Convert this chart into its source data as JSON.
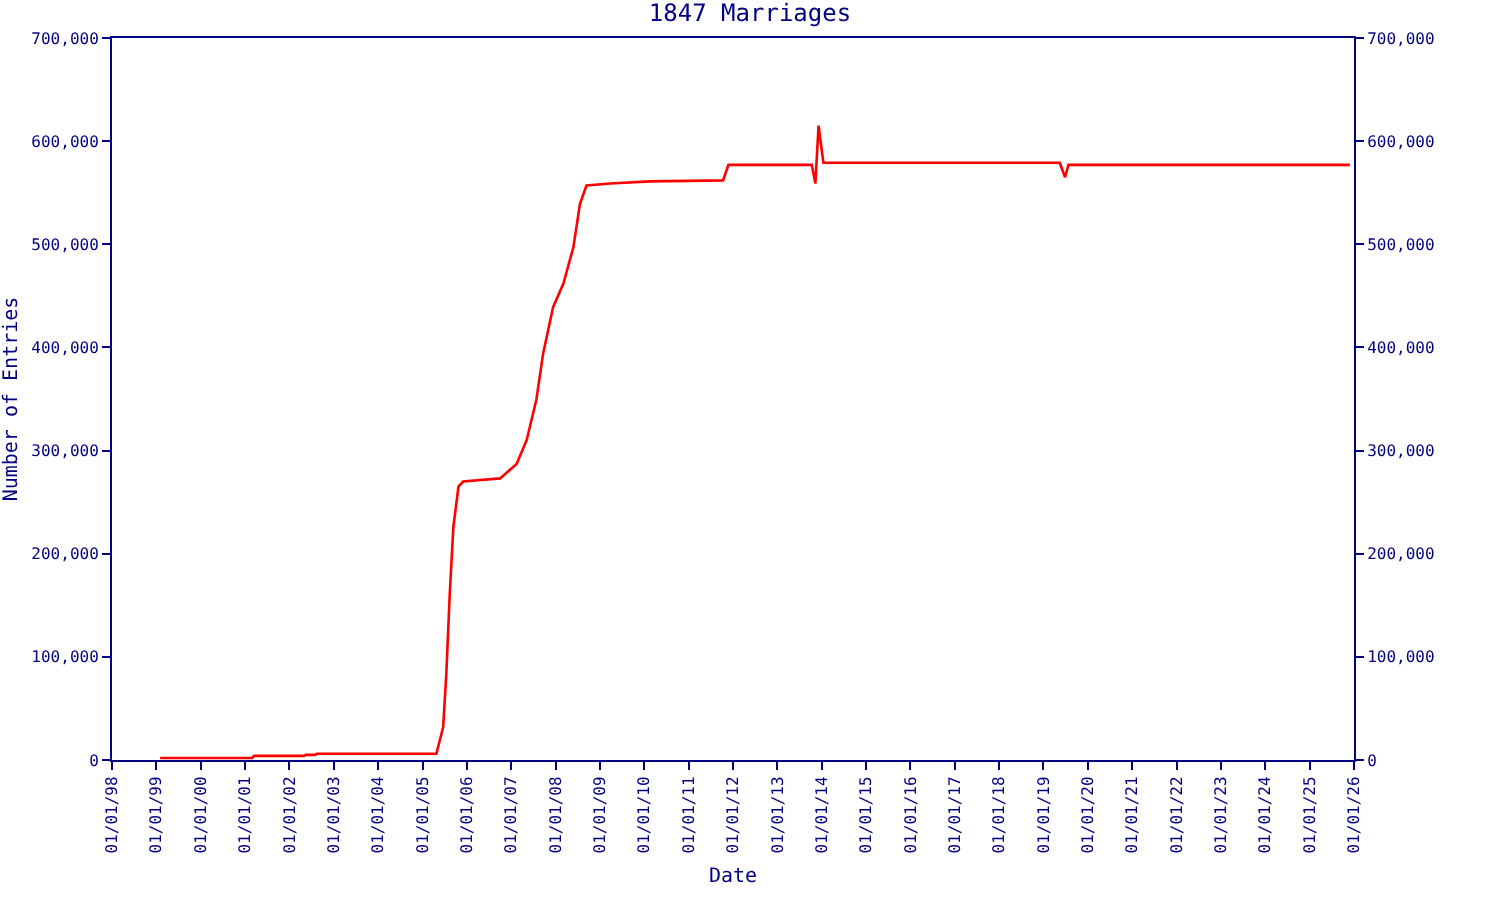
{
  "chart_data": {
    "type": "line",
    "title": "1847 Marriages",
    "xlabel": "Date",
    "ylabel": "Number of Entries",
    "x": [
      "1999-02-01",
      "2001-03-01",
      "2001-03-15",
      "2002-05-01",
      "2002-05-15",
      "2002-08-01",
      "2002-08-15",
      "2005-03-01",
      "2005-04-25",
      "2005-06-20",
      "2005-07-16",
      "2005-08-13",
      "2005-09-12",
      "2005-10-24",
      "2005-12-01",
      "2006-10-01",
      "2007-02-15",
      "2007-05-08",
      "2007-07-27",
      "2007-09-21",
      "2007-12-12",
      "2008-03-06",
      "2008-05-27",
      "2008-07-20",
      "2008-09-12",
      "2009-03-25",
      "2010-02-17",
      "2011-10-12",
      "2011-11-25",
      "2013-10-11",
      "2013-11-10",
      "2013-12-06",
      "2014-01-15",
      "2019-05-15",
      "2019-06-28",
      "2019-07-26",
      "2025-11-28"
    ],
    "series": [
      {
        "color": "#ff0000",
        "values": [
          2000,
          2000,
          4000,
          4000,
          5000,
          5000,
          6000,
          6000,
          6000,
          32000,
          84000,
          161000,
          226000,
          265000,
          270000,
          273000,
          287000,
          310000,
          349000,
          394000,
          439000,
          462000,
          497000,
          539000,
          557000,
          559000,
          561000,
          562000,
          577000,
          577000,
          559000,
          615000,
          579000,
          579000,
          565000,
          577000,
          577000
        ]
      }
    ],
    "xlim": [
      "1998-01-01",
      "2026-01-01"
    ],
    "xticks": [
      {
        "value": "1998-01-01",
        "label": "01/01/98"
      },
      {
        "value": "1999-01-01",
        "label": "01/01/99"
      },
      {
        "value": "2000-01-01",
        "label": "01/01/00"
      },
      {
        "value": "2001-01-01",
        "label": "01/01/01"
      },
      {
        "value": "2002-01-01",
        "label": "01/01/02"
      },
      {
        "value": "2003-01-01",
        "label": "01/01/03"
      },
      {
        "value": "2004-01-01",
        "label": "01/01/04"
      },
      {
        "value": "2005-01-01",
        "label": "01/01/05"
      },
      {
        "value": "2006-01-01",
        "label": "01/01/06"
      },
      {
        "value": "2007-01-01",
        "label": "01/01/07"
      },
      {
        "value": "2008-01-01",
        "label": "01/01/08"
      },
      {
        "value": "2009-01-01",
        "label": "01/01/09"
      },
      {
        "value": "2010-01-01",
        "label": "01/01/10"
      },
      {
        "value": "2011-01-01",
        "label": "01/01/11"
      },
      {
        "value": "2012-01-01",
        "label": "01/01/12"
      },
      {
        "value": "2013-01-01",
        "label": "01/01/13"
      },
      {
        "value": "2014-01-01",
        "label": "01/01/14"
      },
      {
        "value": "2015-01-01",
        "label": "01/01/15"
      },
      {
        "value": "2016-01-01",
        "label": "01/01/16"
      },
      {
        "value": "2017-01-01",
        "label": "01/01/17"
      },
      {
        "value": "2018-01-01",
        "label": "01/01/18"
      },
      {
        "value": "2019-01-01",
        "label": "01/01/19"
      },
      {
        "value": "2020-01-01",
        "label": "01/01/20"
      },
      {
        "value": "2021-01-01",
        "label": "01/01/21"
      },
      {
        "value": "2022-01-01",
        "label": "01/01/22"
      },
      {
        "value": "2023-01-01",
        "label": "01/01/23"
      },
      {
        "value": "2024-01-01",
        "label": "01/01/24"
      },
      {
        "value": "2025-01-01",
        "label": "01/01/25"
      },
      {
        "value": "2026-01-01",
        "label": "01/01/26"
      }
    ],
    "ylim": [
      0,
      700000
    ],
    "yticks": [
      {
        "value": 0,
        "label": "0"
      },
      {
        "value": 100000,
        "label": "100,000"
      },
      {
        "value": 200000,
        "label": "200,000"
      },
      {
        "value": 300000,
        "label": "300,000"
      },
      {
        "value": 400000,
        "label": "400,000"
      },
      {
        "value": 500000,
        "label": "500,000"
      },
      {
        "value": 600000,
        "label": "600,000"
      },
      {
        "value": 700000,
        "label": "700,000"
      }
    ],
    "y2lim": [
      0,
      700000
    ],
    "y2ticks": [
      {
        "value": 0,
        "label": "0"
      },
      {
        "value": 100000,
        "label": "100,000"
      },
      {
        "value": 200000,
        "label": "200,000"
      },
      {
        "value": 300000,
        "label": "300,000"
      },
      {
        "value": 400000,
        "label": "400,000"
      },
      {
        "value": 500000,
        "label": "500,000"
      },
      {
        "value": 600000,
        "label": "600,000"
      },
      {
        "value": 700000,
        "label": "700,000"
      }
    ],
    "grid": false,
    "marker": "none",
    "line_style": "solid"
  }
}
